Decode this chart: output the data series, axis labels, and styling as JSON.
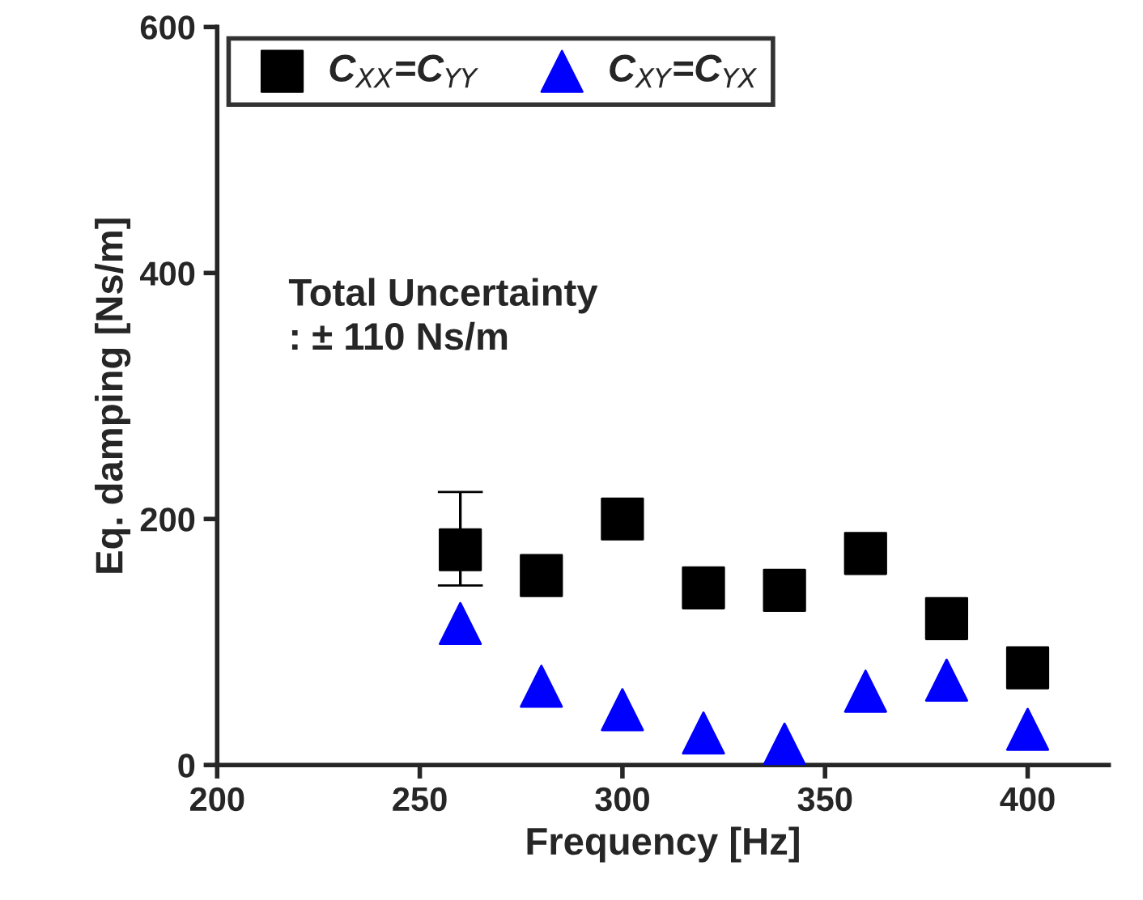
{
  "chart_data": {
    "type": "scatter",
    "xlabel": "Frequency [Hz]",
    "ylabel": "Eq. damping [Ns/m]",
    "annotations": [
      "Total Uncertainty\n: ± 110 Ns/m"
    ],
    "x": [
      260,
      280,
      300,
      320,
      340,
      360,
      380,
      400
    ],
    "series": [
      {
        "name": "C$_{XX}$=C$_{YY}$",
        "color": "#000000",
        "marker": "square",
        "values": [
          175,
          154,
          200,
          144,
          142,
          172,
          119,
          79
        ],
        "errors": [
          [
            146,
            222
          ],
          null,
          null,
          null,
          null,
          null,
          null,
          null
        ]
      },
      {
        "name": "C$_{XY}$=C$_{YX}$",
        "color": "#0000ff",
        "marker": "triangle",
        "values": [
          115,
          64,
          45,
          26,
          17,
          60,
          69,
          29
        ]
      }
    ],
    "xlim": [
      200,
      420
    ],
    "xticks": [
      200,
      250,
      300,
      350,
      400
    ],
    "ylim": [
      0,
      600
    ],
    "yticks": [
      0,
      200,
      400,
      600
    ],
    "grid": false,
    "legend": "top left"
  }
}
